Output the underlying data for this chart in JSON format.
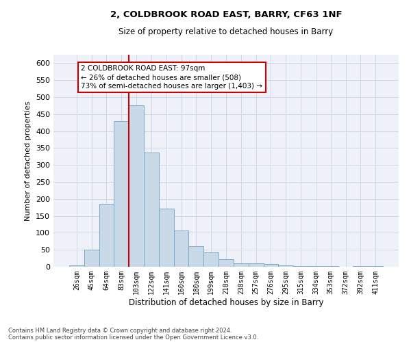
{
  "title1": "2, COLDBROOK ROAD EAST, BARRY, CF63 1NF",
  "title2": "Size of property relative to detached houses in Barry",
  "xlabel": "Distribution of detached houses by size in Barry",
  "ylabel": "Number of detached properties",
  "categories": [
    "26sqm",
    "45sqm",
    "64sqm",
    "83sqm",
    "103sqm",
    "122sqm",
    "141sqm",
    "160sqm",
    "180sqm",
    "199sqm",
    "218sqm",
    "238sqm",
    "257sqm",
    "276sqm",
    "295sqm",
    "315sqm",
    "334sqm",
    "353sqm",
    "372sqm",
    "392sqm",
    "411sqm"
  ],
  "values": [
    5,
    50,
    185,
    430,
    475,
    337,
    172,
    107,
    60,
    43,
    22,
    10,
    10,
    8,
    5,
    3,
    2,
    2,
    1,
    2,
    3
  ],
  "bar_color": "#c9d9e8",
  "bar_edge_color": "#7aaac8",
  "red_line_x": 3.5,
  "annotation_text": "2 COLDBROOK ROAD EAST: 97sqm\n← 26% of detached houses are smaller (508)\n73% of semi-detached houses are larger (1,403) →",
  "annotation_box_color": "#ffffff",
  "annotation_box_edge": "#cc0000",
  "ylim": [
    0,
    625
  ],
  "yticks": [
    0,
    50,
    100,
    150,
    200,
    250,
    300,
    350,
    400,
    450,
    500,
    550,
    600
  ],
  "footer1": "Contains HM Land Registry data © Crown copyright and database right 2024.",
  "footer2": "Contains public sector information licensed under the Open Government Licence v3.0.",
  "grid_color": "#d0d8e8",
  "background_color": "#eef2f8",
  "fig_bg": "#ffffff"
}
